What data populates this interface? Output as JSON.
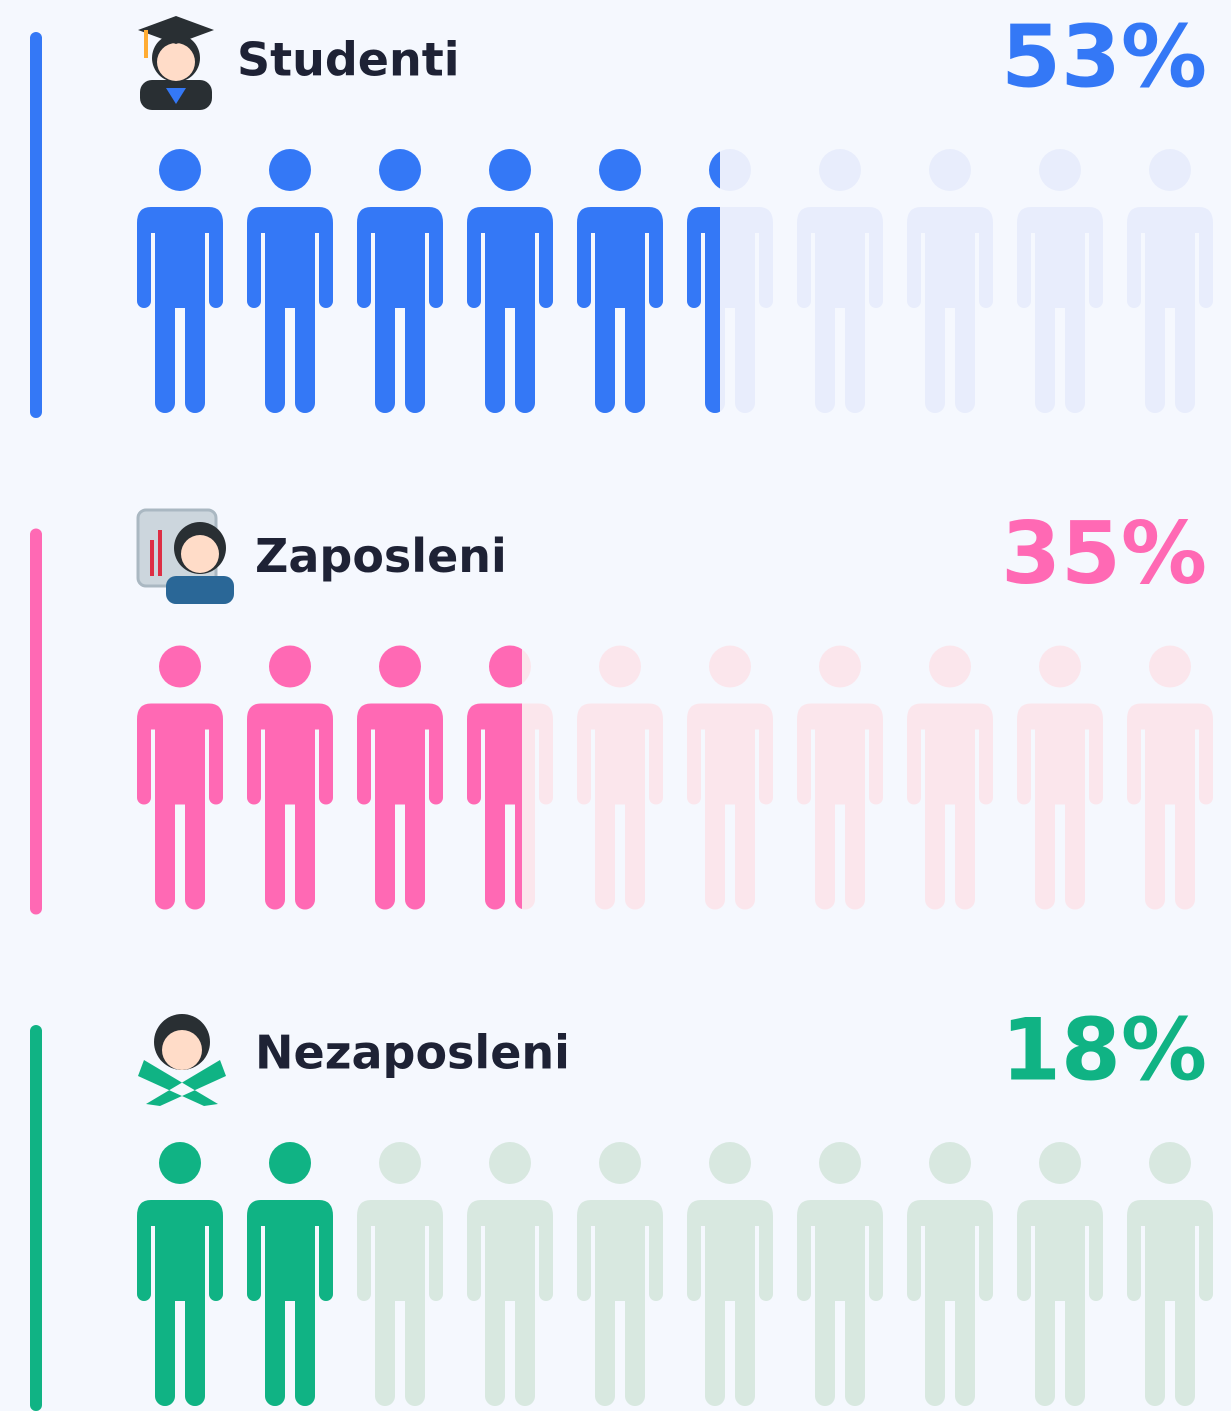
{
  "chart_data": {
    "type": "pictogram",
    "categories": [
      "Studenti",
      "Zaposleni",
      "Nezaposleni"
    ],
    "values": [
      53,
      35,
      18
    ],
    "value_labels": [
      "53%",
      "35%",
      "18%"
    ],
    "colors": [
      "#3478f6",
      "#ff69b4",
      "#10b384"
    ],
    "empty_colors": [
      "#e8edfc",
      "#fbe6ec",
      "#d8e8e0"
    ],
    "xlim": [
      0,
      100
    ]
  }
}
